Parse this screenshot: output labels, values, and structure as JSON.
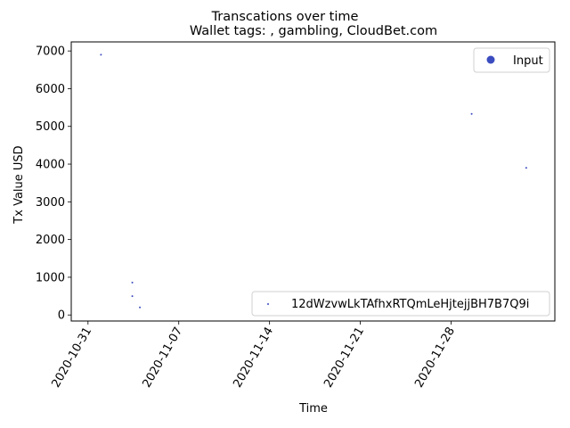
{
  "chart_data": {
    "type": "scatter",
    "suptitle": "Transcations over time",
    "title": "Wallet tags: , gambling, CloudBet.com",
    "xlabel": "Time",
    "ylabel": "Tx Value USD",
    "xlim": [
      "2020-10-29T17:00",
      "2020-12-06T00:00"
    ],
    "ylim": [
      -160,
      7240
    ],
    "x_ticks": [
      "2020-10-31",
      "2020-11-07",
      "2020-11-14",
      "2020-11-21",
      "2020-11-28"
    ],
    "x_tick_rotation": 60,
    "y_ticks": [
      0,
      1000,
      2000,
      3000,
      4000,
      5000,
      6000,
      7000
    ],
    "grid": false,
    "point_color": "#3b4cc0",
    "series": [
      {
        "name": "Input",
        "legend_location": "upper right",
        "color": "#3b4cc0",
        "points": [
          {
            "x": "2020-11-01T00:00",
            "y": 6900
          },
          {
            "x": "2020-11-03T10:00",
            "y": 860
          },
          {
            "x": "2020-11-03T10:00",
            "y": 500
          },
          {
            "x": "2020-11-04T00:00",
            "y": 200
          },
          {
            "x": "2020-11-29T14:00",
            "y": 5330
          },
          {
            "x": "2020-12-03T19:00",
            "y": 3900
          }
        ]
      }
    ],
    "secondary_legend": {
      "label": "12dWzvwLkTAfhxRTQmLeHjtejjBH7B7Q9i",
      "location": "lower right",
      "color": "#3b4cc0"
    }
  }
}
